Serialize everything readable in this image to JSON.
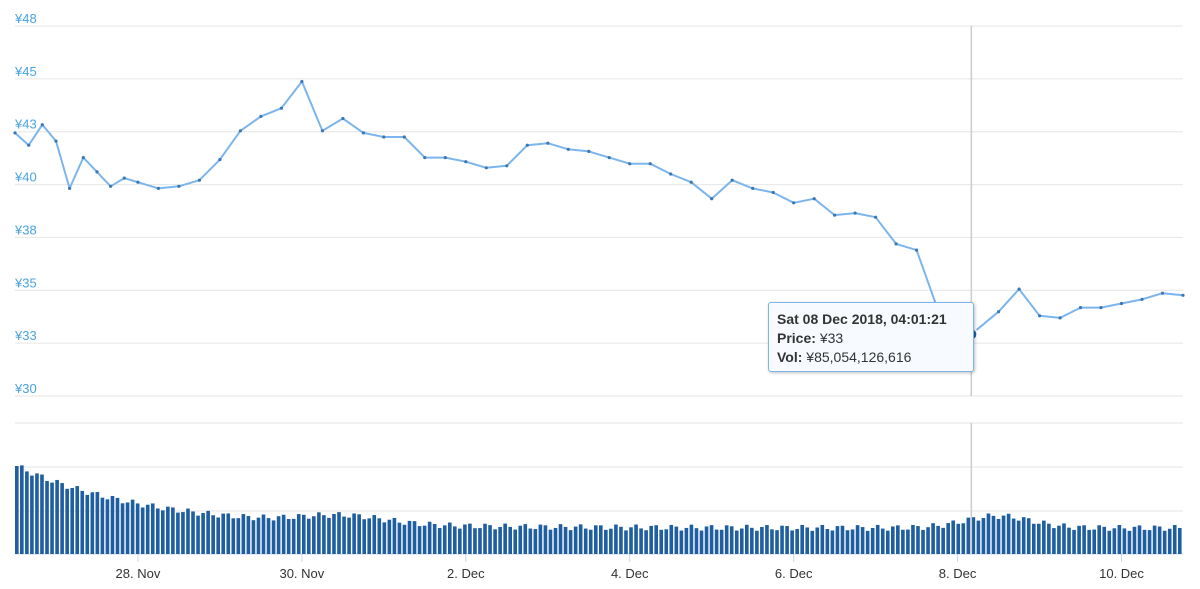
{
  "chart_data": {
    "type": "line",
    "price_series": {
      "name": "Price",
      "x": [
        "2018-11-26 12:00",
        "2018-11-26 16:00",
        "2018-11-26 20:00",
        "2018-11-27 00:00",
        "2018-11-27 04:00",
        "2018-11-27 08:00",
        "2018-11-27 12:00",
        "2018-11-27 16:00",
        "2018-11-27 20:00",
        "2018-11-28 00:00",
        "2018-11-28 06:00",
        "2018-11-28 12:00",
        "2018-11-28 18:00",
        "2018-11-29 00:00",
        "2018-11-29 06:00",
        "2018-11-29 12:00",
        "2018-11-29 18:00",
        "2018-11-30 00:00",
        "2018-11-30 06:00",
        "2018-11-30 12:00",
        "2018-11-30 18:00",
        "2018-12-01 00:00",
        "2018-12-01 06:00",
        "2018-12-01 12:00",
        "2018-12-01 18:00",
        "2018-12-02 00:00",
        "2018-12-02 06:00",
        "2018-12-02 12:00",
        "2018-12-02 18:00",
        "2018-12-03 00:00",
        "2018-12-03 06:00",
        "2018-12-03 12:00",
        "2018-12-03 18:00",
        "2018-12-04 00:00",
        "2018-12-04 06:00",
        "2018-12-04 12:00",
        "2018-12-04 18:00",
        "2018-12-05 00:00",
        "2018-12-05 06:00",
        "2018-12-05 12:00",
        "2018-12-05 18:00",
        "2018-12-06 00:00",
        "2018-12-06 06:00",
        "2018-12-06 12:00",
        "2018-12-06 18:00",
        "2018-12-07 00:00",
        "2018-12-07 06:00",
        "2018-12-07 12:00",
        "2018-12-07 18:00",
        "2018-12-08 00:00",
        "2018-12-08 04:01",
        "2018-12-08 12:00",
        "2018-12-08 18:00",
        "2018-12-09 00:00",
        "2018-12-09 06:00",
        "2018-12-09 12:00",
        "2018-12-09 18:00",
        "2018-12-10 00:00",
        "2018-12-10 06:00",
        "2018-12-10 12:00",
        "2018-12-10 18:00"
      ],
      "values": [
        42.8,
        42.2,
        43.2,
        42.4,
        40.1,
        41.6,
        40.9,
        40.2,
        40.6,
        40.4,
        40.1,
        40.2,
        40.5,
        41.5,
        42.9,
        43.6,
        44.0,
        45.3,
        42.9,
        43.5,
        42.8,
        42.6,
        42.6,
        41.6,
        41.6,
        41.4,
        41.1,
        41.2,
        42.2,
        42.3,
        42.0,
        41.9,
        41.6,
        41.3,
        41.3,
        40.8,
        40.4,
        39.6,
        40.5,
        40.1,
        39.9,
        39.4,
        39.6,
        38.8,
        38.9,
        38.7,
        37.4,
        37.1,
        34.3,
        34.1,
        33.0,
        34.1,
        35.2,
        33.9,
        33.8,
        34.3,
        34.3,
        34.5,
        34.7,
        35.0,
        34.9
      ]
    },
    "volume_series": {
      "name": "Vol"
    },
    "y_ticks": [
      "¥48",
      "¥45",
      "¥43",
      "¥40",
      "¥38",
      "¥35",
      "¥33",
      "¥30"
    ],
    "x_ticks": [
      "28. Nov",
      "30. Nov",
      "2. Dec",
      "4. Dec",
      "6. Dec",
      "8. Dec",
      "10. Dec"
    ],
    "ylim": [
      30,
      48
    ],
    "xlim": [
      "2018-11-26 12:00",
      "2018-12-10 18:00"
    ],
    "grid": true,
    "legend": "none",
    "colors": {
      "line": "#7cb5ec",
      "marker": "#3a78b3",
      "volume": "#1f5fa1",
      "axis_label": "#4aa3df",
      "tooltip_border": "#7cb5ec"
    }
  },
  "tooltip": {
    "datetime": "Sat 08 Dec 2018, 04:01:21",
    "price_label": "Price:",
    "price_value": "¥33",
    "vol_label": "Vol:",
    "vol_value": "¥85,054,126,616"
  }
}
